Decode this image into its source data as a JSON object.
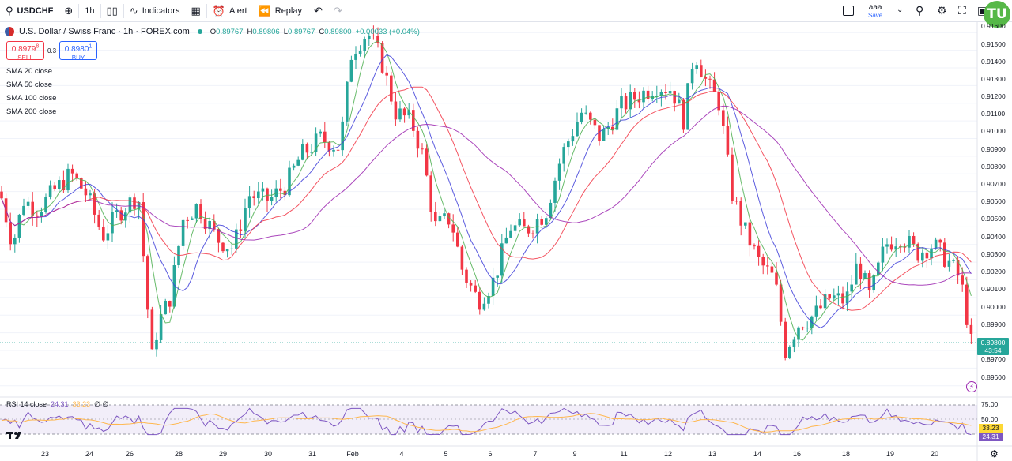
{
  "toolbar": {
    "symbol": "USDCHF",
    "interval": "1h",
    "indicators_label": "Indicators",
    "alert_label": "Alert",
    "replay_label": "Replay",
    "layout_name": "aaa",
    "layout_save": "Save",
    "logo_text": "TU"
  },
  "legend": {
    "title": "U.S. Dollar / Swiss Franc · 1h · FOREX.com",
    "o_label": "O",
    "o_value": "0.89767",
    "h_label": "H",
    "h_value": "0.89806",
    "l_label": "L",
    "l_value": "0.89767",
    "c_label": "C",
    "c_value": "0.89800",
    "change": "+0.00033 (+0.04%)"
  },
  "trade": {
    "sell_price": "0.8979",
    "sell_super": "8",
    "sell_label": "SELL",
    "spread": "0.3",
    "buy_price": "0.8980",
    "buy_super": "1",
    "buy_label": "BUY"
  },
  "indicators": [
    "SMA 20 close",
    "SMA 50 close",
    "SMA 100 close",
    "SMA 200 close"
  ],
  "price_axis": [
    "0.91600",
    "0.91500",
    "0.91400",
    "0.91300",
    "0.91200",
    "0.91100",
    "0.91000",
    "0.90900",
    "0.90800",
    "0.90700",
    "0.90600",
    "0.90500",
    "0.90400",
    "0.90300",
    "0.90200",
    "0.90100",
    "0.90000",
    "0.89900",
    "0.89700",
    "0.89600"
  ],
  "current_price": {
    "price": "0.89800",
    "countdown": "43:54"
  },
  "rsi": {
    "label": "RSI 14 close",
    "value": "24.31",
    "ma_value": "33.23",
    "extra": "∅ ∅",
    "levels": [
      "75.00",
      "50.00",
      "25.00"
    ],
    "tag_ma": "33.23",
    "tag_value": "24.31"
  },
  "time_axis": [
    "23",
    "24",
    "26",
    "28",
    "29",
    "30",
    "31",
    "Feb",
    "4",
    "5",
    "6",
    "7",
    "9",
    "11",
    "12",
    "13",
    "14",
    "16",
    "18",
    "19",
    "20"
  ],
  "colors": {
    "up": "#26a69a",
    "down": "#f23645",
    "sma20": "#4caf50",
    "sma50": "#3f3fd9",
    "sma100": "#f23645",
    "sma200": "#9c27b0",
    "rsi": "#7e57c2",
    "rsi_ma": "#ffb74d"
  },
  "chart_data": {
    "type": "candlestick",
    "title": "U.S. Dollar / Swiss Franc · 1h · FOREX.com",
    "ylim": [
      0.8955,
      0.9165
    ],
    "close_path": [
      [
        0,
        0.907
      ],
      [
        16,
        0.904
      ],
      [
        30,
        0.9065
      ],
      [
        48,
        0.906
      ],
      [
        72,
        0.9072
      ],
      [
        90,
        0.908
      ],
      [
        110,
        0.9068
      ],
      [
        130,
        0.9045
      ],
      [
        150,
        0.9058
      ],
      [
        175,
        0.9068
      ],
      [
        192,
        0.8975
      ],
      [
        200,
        0.8995
      ],
      [
        215,
        0.901
      ],
      [
        232,
        0.9055
      ],
      [
        250,
        0.9062
      ],
      [
        275,
        0.9043
      ],
      [
        295,
        0.9038
      ],
      [
        315,
        0.9068
      ],
      [
        340,
        0.9065
      ],
      [
        362,
        0.9074
      ],
      [
        380,
        0.909
      ],
      [
        405,
        0.91
      ],
      [
        430,
        0.9095
      ],
      [
        445,
        0.915
      ],
      [
        465,
        0.916
      ],
      [
        482,
        0.9145
      ],
      [
        500,
        0.9115
      ],
      [
        520,
        0.911
      ],
      [
        535,
        0.909
      ],
      [
        550,
        0.905
      ],
      [
        570,
        0.9055
      ],
      [
        585,
        0.9025
      ],
      [
        605,
        0.9008
      ],
      [
        625,
        0.902
      ],
      [
        645,
        0.905
      ],
      [
        665,
        0.9048
      ],
      [
        690,
        0.9058
      ],
      [
        710,
        0.909
      ],
      [
        735,
        0.9115
      ],
      [
        760,
        0.91
      ],
      [
        785,
        0.9118
      ],
      [
        810,
        0.9125
      ],
      [
        830,
        0.913
      ],
      [
        850,
        0.9128
      ],
      [
        865,
        0.911
      ],
      [
        878,
        0.915
      ],
      [
        895,
        0.913
      ],
      [
        910,
        0.912
      ],
      [
        925,
        0.907
      ],
      [
        940,
        0.905
      ],
      [
        960,
        0.903
      ],
      [
        980,
        0.902
      ],
      [
        993,
        0.898
      ],
      [
        1010,
        0.8995
      ],
      [
        1030,
        0.9
      ],
      [
        1050,
        0.901
      ],
      [
        1070,
        0.9008
      ],
      [
        1085,
        0.903
      ],
      [
        1100,
        0.901
      ],
      [
        1120,
        0.904
      ],
      [
        1140,
        0.9045
      ],
      [
        1160,
        0.9035
      ],
      [
        1180,
        0.904
      ],
      [
        1200,
        0.903
      ],
      [
        1215,
        0.902
      ],
      [
        1230,
        0.898
      ]
    ]
  }
}
